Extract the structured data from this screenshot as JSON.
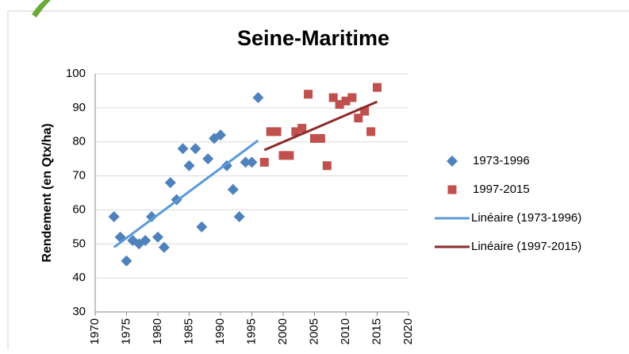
{
  "chart_data": {
    "type": "scatter",
    "title": "Seine-Maritime",
    "y_label": "Rendement (en Qtx/ha)",
    "xlim": [
      1970,
      2020
    ],
    "xticks": [
      1970,
      1975,
      1980,
      1985,
      1990,
      1995,
      2000,
      2005,
      2010,
      2015,
      2020
    ],
    "ylim": [
      30,
      100
    ],
    "yticks": [
      30,
      40,
      50,
      60,
      70,
      80,
      90,
      100
    ],
    "grid": true,
    "series": [
      {
        "name": "1973-1996",
        "kind": "marker",
        "marker": "diamond",
        "color": "#4f81bd",
        "x": [
          1973,
          1974,
          1975,
          1976,
          1977,
          1978,
          1979,
          1980,
          1981,
          1982,
          1983,
          1984,
          1985,
          1986,
          1987,
          1988,
          1989,
          1990,
          1991,
          1992,
          1993,
          1994,
          1995,
          1996
        ],
        "values": [
          58,
          52,
          45,
          51,
          50,
          51,
          58,
          52,
          49,
          68,
          63,
          78,
          73,
          78,
          55,
          75,
          81,
          82,
          73,
          66,
          58,
          74,
          74,
          93
        ]
      },
      {
        "name": "1997-2015",
        "kind": "marker",
        "marker": "square",
        "color": "#c0504d",
        "x": [
          1997,
          1998,
          1999,
          2000,
          2001,
          2002,
          2003,
          2004,
          2005,
          2006,
          2007,
          2008,
          2009,
          2010,
          2011,
          2012,
          2013,
          2014,
          2015
        ],
        "values": [
          74,
          83,
          83,
          76,
          76,
          83,
          84,
          94,
          81,
          81,
          73,
          93,
          91,
          92,
          93,
          87,
          89,
          83,
          96
        ]
      },
      {
        "name": "Linéaire (1973-1996)",
        "kind": "line",
        "color": "#5b9bd5",
        "x": [
          1973,
          1996
        ],
        "values": [
          49,
          80.4
        ]
      },
      {
        "name": "Linéaire (1997-2015)",
        "kind": "line",
        "color": "#8b2a2a",
        "x": [
          1997,
          2015
        ],
        "values": [
          77.6,
          91.8
        ]
      }
    ]
  }
}
